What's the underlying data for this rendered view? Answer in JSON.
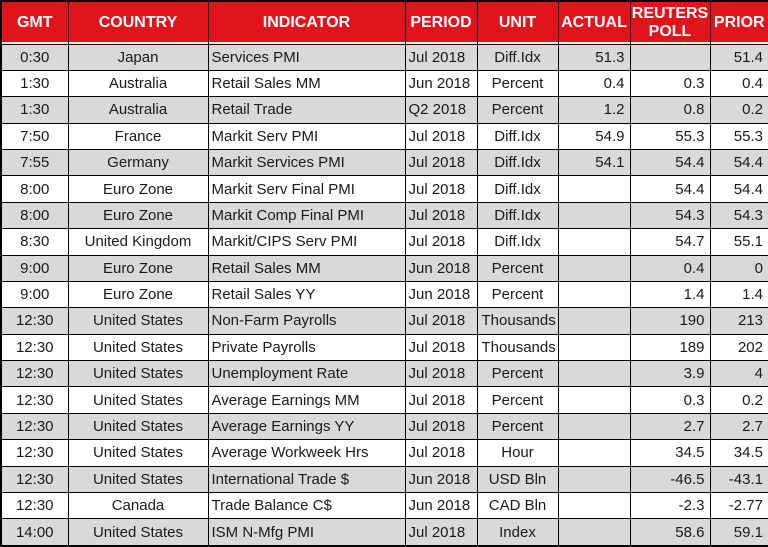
{
  "colors": {
    "header_bg": "#e2141b",
    "header_text": "#ffffff",
    "row_shaded": "#d9d9d9",
    "row_plain": "#ffffff",
    "grid": "#000000"
  },
  "chart_data": {
    "type": "table",
    "columns": [
      "GMT",
      "COUNTRY",
      "INDICATOR",
      "PERIOD",
      "UNIT",
      "ACTUAL",
      "REUTERS POLL",
      "PRIOR"
    ],
    "rows": [
      [
        "0:30",
        "Japan",
        "Services PMI",
        "Jul 2018",
        "Diff.Idx",
        "51.3",
        "",
        "51.4"
      ],
      [
        "1:30",
        "Australia",
        "Retail Sales MM",
        "Jun 2018",
        "Percent",
        "0.4",
        "0.3",
        "0.4"
      ],
      [
        "1:30",
        "Australia",
        "Retail Trade",
        "Q2 2018",
        "Percent",
        "1.2",
        "0.8",
        "0.2"
      ],
      [
        "7:50",
        "France",
        "Markit Serv PMI",
        "Jul 2018",
        "Diff.Idx",
        "54.9",
        "55.3",
        "55.3"
      ],
      [
        "7:55",
        "Germany",
        "Markit Services PMI",
        "Jul 2018",
        "Diff.Idx",
        "54.1",
        "54.4",
        "54.4"
      ],
      [
        "8:00",
        "Euro Zone",
        "Markit Serv Final PMI",
        "Jul 2018",
        "Diff.Idx",
        "",
        "54.4",
        "54.4"
      ],
      [
        "8:00",
        "Euro Zone",
        "Markit Comp Final PMI",
        "Jul 2018",
        "Diff.Idx",
        "",
        "54.3",
        "54.3"
      ],
      [
        "8:30",
        "United Kingdom",
        "Markit/CIPS Serv PMI",
        "Jul 2018",
        "Diff.Idx",
        "",
        "54.7",
        "55.1"
      ],
      [
        "9:00",
        "Euro Zone",
        "Retail Sales MM",
        "Jun 2018",
        "Percent",
        "",
        "0.4",
        "0"
      ],
      [
        "9:00",
        "Euro Zone",
        "Retail Sales YY",
        "Jun 2018",
        "Percent",
        "",
        "1.4",
        "1.4"
      ],
      [
        "12:30",
        "United States",
        "Non-Farm Payrolls",
        "Jul 2018",
        "Thousands",
        "",
        "190",
        "213"
      ],
      [
        "12:30",
        "United States",
        "Private Payrolls",
        "Jul 2018",
        "Thousands",
        "",
        "189",
        "202"
      ],
      [
        "12:30",
        "United States",
        "Unemployment Rate",
        "Jul 2018",
        "Percent",
        "",
        "3.9",
        "4"
      ],
      [
        "12:30",
        "United States",
        "Average Earnings MM",
        "Jul 2018",
        "Percent",
        "",
        "0.3",
        "0.2"
      ],
      [
        "12:30",
        "United States",
        "Average Earnings YY",
        "Jul 2018",
        "Percent",
        "",
        "2.7",
        "2.7"
      ],
      [
        "12:30",
        "United States",
        "Average Workweek Hrs",
        "Jul 2018",
        "Hour",
        "",
        "34.5",
        "34.5"
      ],
      [
        "12:30",
        "United States",
        "International Trade $",
        "Jun 2018",
        "USD Bln",
        "",
        "-46.5",
        "-43.1"
      ],
      [
        "12:30",
        "Canada",
        "Trade Balance C$",
        "Jun 2018",
        "CAD Bln",
        "",
        "-2.3",
        "-2.77"
      ],
      [
        "14:00",
        "United States",
        "ISM N-Mfg PMI",
        "Jul 2018",
        "Index",
        "",
        "58.6",
        "59.1"
      ]
    ]
  }
}
